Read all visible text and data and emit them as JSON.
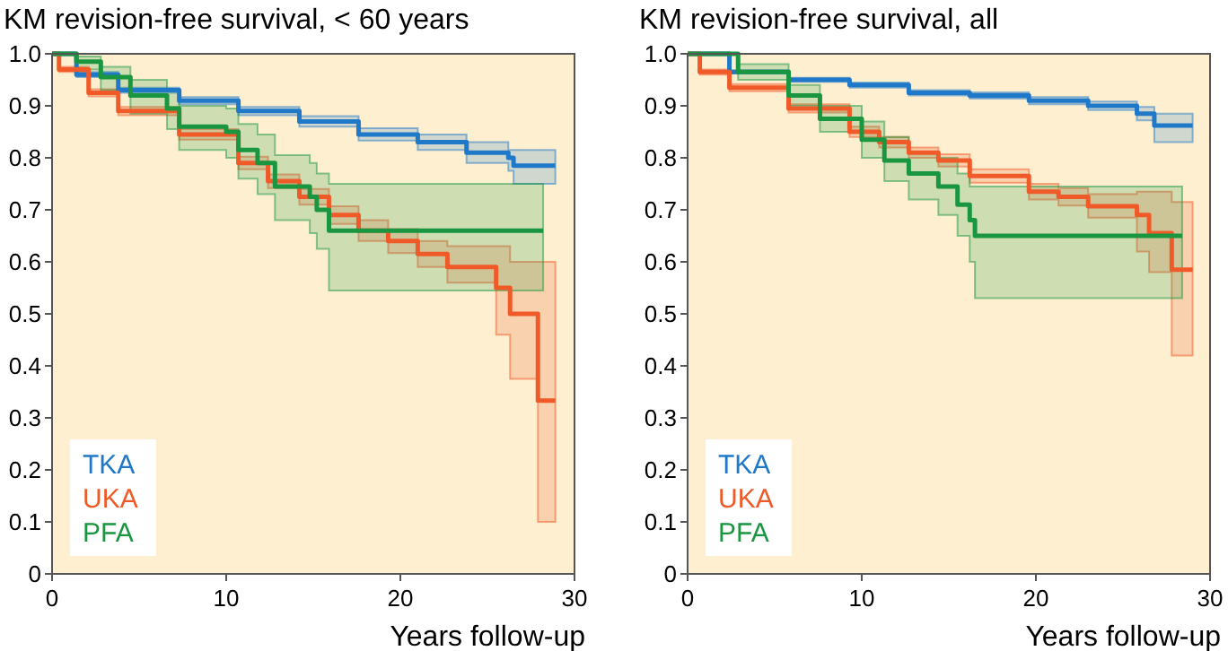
{
  "chart_data": [
    {
      "type": "step",
      "title": "KM revision-free survival, < 60 years",
      "xlabel": "Years follow-up",
      "xlim": [
        0,
        30
      ],
      "xticks": [
        0,
        10,
        20,
        30
      ],
      "ylim": [
        0,
        1
      ],
      "yticks": [
        0,
        0.1,
        0.2,
        0.3,
        0.4,
        0.5,
        0.6,
        0.7,
        0.8,
        0.9,
        {
          "value": 1,
          "label": "1.0"
        }
      ],
      "grid": false,
      "legend": "bottom left",
      "series": [
        {
          "name": "TKA",
          "color": "#1f78c8",
          "x": [
            0,
            1.4,
            3.8,
            7.3,
            10.7,
            14.2,
            17.6,
            21,
            23.8,
            26.2,
            26.5,
            28.9
          ],
          "values": [
            1,
            0.96,
            0.93,
            0.91,
            0.89,
            0.87,
            0.845,
            0.83,
            0.81,
            0.8,
            0.785,
            0.785
          ],
          "lower": [
            1,
            0.955,
            0.925,
            0.903,
            0.882,
            0.86,
            0.833,
            0.815,
            0.79,
            0.775,
            0.75,
            0.75
          ],
          "upper": [
            1,
            0.965,
            0.935,
            0.917,
            0.898,
            0.88,
            0.857,
            0.845,
            0.83,
            0.815,
            0.815,
            0.815
          ]
        },
        {
          "name": "UKA",
          "color": "#f05a28",
          "x": [
            0,
            0.4,
            2.1,
            3.8,
            7.3,
            10.7,
            12.4,
            14.2,
            15.9,
            17.6,
            19.3,
            21,
            22.7,
            25.5,
            26.3,
            27.9,
            28.9
          ],
          "values": [
            1,
            0.97,
            0.925,
            0.89,
            0.845,
            0.79,
            0.755,
            0.725,
            0.69,
            0.66,
            0.64,
            0.615,
            0.59,
            0.55,
            0.5,
            0.333,
            0.333
          ],
          "lower": [
            1,
            0.965,
            0.918,
            0.882,
            0.835,
            0.778,
            0.742,
            0.71,
            0.673,
            0.64,
            0.617,
            0.59,
            0.56,
            0.46,
            0.375,
            0.1,
            0.1
          ],
          "upper": [
            1,
            0.975,
            0.932,
            0.898,
            0.855,
            0.802,
            0.768,
            0.74,
            0.707,
            0.68,
            0.663,
            0.64,
            0.63,
            0.63,
            0.6,
            0.6,
            0.6
          ]
        },
        {
          "name": "PFA",
          "color": "#1a9641",
          "x": [
            0,
            1.4,
            2.8,
            4.5,
            6.6,
            7.3,
            10,
            10.7,
            11.8,
            12.8,
            14.8,
            15.2,
            15.9,
            28.2
          ],
          "values": [
            1,
            0.985,
            0.955,
            0.92,
            0.895,
            0.86,
            0.85,
            0.815,
            0.79,
            0.745,
            0.725,
            0.7,
            0.66,
            0.66
          ],
          "lower": [
            1,
            0.97,
            0.93,
            0.885,
            0.855,
            0.815,
            0.8,
            0.76,
            0.73,
            0.68,
            0.655,
            0.625,
            0.545,
            0.545
          ],
          "upper": [
            1,
            0.995,
            0.975,
            0.95,
            0.93,
            0.9,
            0.895,
            0.865,
            0.845,
            0.805,
            0.79,
            0.77,
            0.75,
            0.75
          ]
        }
      ]
    },
    {
      "type": "step",
      "title": "KM revision-free survival, all",
      "xlabel": "Years follow-up",
      "xlim": [
        0,
        30
      ],
      "xticks": [
        0,
        10,
        20,
        30
      ],
      "ylim": [
        0,
        1
      ],
      "yticks": [
        0,
        0.1,
        0.2,
        0.3,
        0.4,
        0.5,
        0.6,
        0.7,
        0.8,
        0.9,
        {
          "value": 1,
          "label": "1.0"
        }
      ],
      "grid": false,
      "legend": "bottom left",
      "series": [
        {
          "name": "TKA",
          "color": "#1f78c8",
          "x": [
            0,
            2.4,
            5.8,
            9.3,
            12.7,
            16.2,
            19.6,
            23,
            25.8,
            26.8,
            29
          ],
          "values": [
            1,
            0.965,
            0.95,
            0.94,
            0.925,
            0.92,
            0.91,
            0.9,
            0.885,
            0.862,
            0.862
          ],
          "lower": [
            1,
            0.962,
            0.946,
            0.935,
            0.92,
            0.914,
            0.903,
            0.892,
            0.872,
            0.83,
            0.83
          ],
          "upper": [
            1,
            0.968,
            0.954,
            0.945,
            0.93,
            0.926,
            0.917,
            0.908,
            0.898,
            0.885,
            0.885
          ]
        },
        {
          "name": "UKA",
          "color": "#f05a28",
          "x": [
            0,
            0.7,
            2.4,
            5.8,
            9.3,
            11,
            12.7,
            14.4,
            16.2,
            19.6,
            21.3,
            23,
            25.8,
            26.5,
            27.8,
            29
          ],
          "values": [
            1,
            0.965,
            0.935,
            0.895,
            0.85,
            0.83,
            0.81,
            0.795,
            0.765,
            0.735,
            0.725,
            0.707,
            0.69,
            0.655,
            0.585,
            0.585
          ],
          "lower": [
            1,
            0.96,
            0.928,
            0.887,
            0.84,
            0.82,
            0.8,
            0.783,
            0.752,
            0.72,
            0.708,
            0.685,
            0.62,
            0.58,
            0.42,
            0.42
          ],
          "upper": [
            1,
            0.97,
            0.942,
            0.903,
            0.86,
            0.84,
            0.82,
            0.807,
            0.778,
            0.75,
            0.742,
            0.73,
            0.735,
            0.735,
            0.715,
            0.715
          ]
        },
        {
          "name": "PFA",
          "color": "#1a9641",
          "x": [
            0,
            2.9,
            5.8,
            7.6,
            10,
            11.3,
            12.7,
            14.4,
            15.5,
            16.2,
            16.5,
            28.4
          ],
          "values": [
            1,
            0.965,
            0.92,
            0.875,
            0.835,
            0.795,
            0.77,
            0.745,
            0.71,
            0.68,
            0.65,
            0.65
          ],
          "lower": [
            1,
            0.95,
            0.9,
            0.85,
            0.8,
            0.755,
            0.72,
            0.69,
            0.65,
            0.6,
            0.53,
            0.53
          ],
          "upper": [
            1,
            0.98,
            0.94,
            0.9,
            0.87,
            0.84,
            0.81,
            0.8,
            0.77,
            0.745,
            0.745,
            0.745
          ]
        }
      ]
    }
  ]
}
